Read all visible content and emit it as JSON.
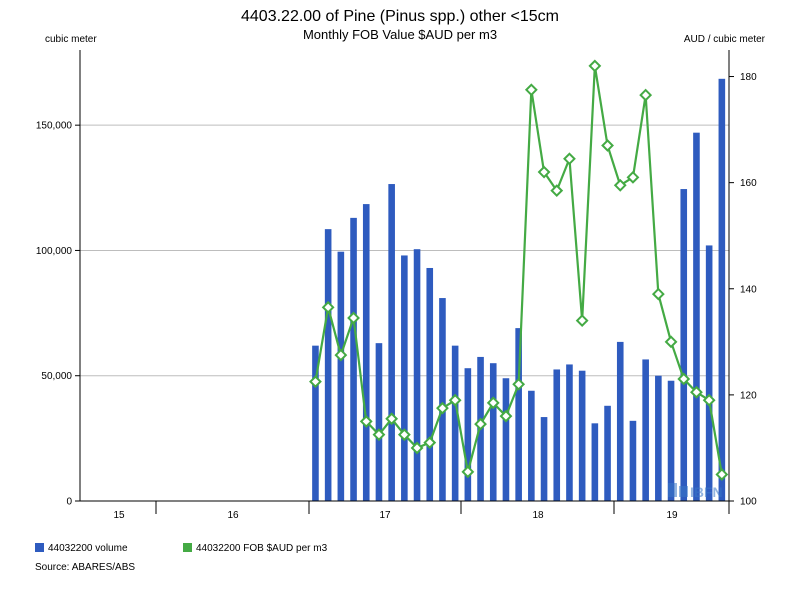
{
  "chart_data": {
    "type": "bar+line",
    "title": "4403.22.00 of Pine (Pinus spp.) other <15cm",
    "subtitle": "Monthly FOB Value $AUD per m3",
    "left_axis_unit": "cubic meter",
    "right_axis_unit": "AUD / cubic meter",
    "left_ylim": [
      0,
      180000
    ],
    "left_ticks": [
      0,
      50000,
      100000,
      150000
    ],
    "left_tick_labels": [
      "0",
      "50,000",
      "100,000",
      "150,000"
    ],
    "right_ylim": [
      100,
      185
    ],
    "right_ticks": [
      100,
      120,
      140,
      160,
      180
    ],
    "right_tick_labels": [
      "100",
      "120",
      "140",
      "160",
      "180"
    ],
    "x_tick_labels": [
      "15",
      "16",
      "17",
      "18",
      "19"
    ],
    "grid": "horizontal",
    "series": [
      {
        "name": "44032200 volume",
        "type": "bar",
        "axis": "left",
        "color": "#2e5bbf",
        "values": [
          62000,
          108500,
          99500,
          113000,
          118500,
          63000,
          126500,
          98000,
          100500,
          93000,
          81000,
          62000,
          53000,
          57500,
          55000,
          49000,
          69000,
          44000,
          33500,
          52500,
          54500,
          52000,
          31000,
          38000,
          63500,
          32000,
          56500,
          50000,
          48000,
          124500,
          147000,
          102000,
          168500
        ]
      },
      {
        "name": "44032200 FOB $AUD per m3",
        "type": "line",
        "axis": "right",
        "color": "#44aa44",
        "values": [
          122.5,
          136.5,
          127.5,
          134.5,
          115.0,
          112.5,
          115.5,
          112.5,
          110.0,
          111.0,
          117.5,
          119.0,
          105.5,
          114.5,
          118.5,
          116.0,
          122.0,
          177.5,
          162.0,
          158.5,
          164.5,
          134.0,
          182.0,
          167.0,
          159.5,
          161.0,
          176.5,
          139.0,
          130.0,
          123.0,
          120.5,
          119.0,
          105.0
        ]
      }
    ],
    "legend": "bottom-left"
  },
  "source_label": "Source: ABARES/ABS",
  "watermark": "IBFN"
}
